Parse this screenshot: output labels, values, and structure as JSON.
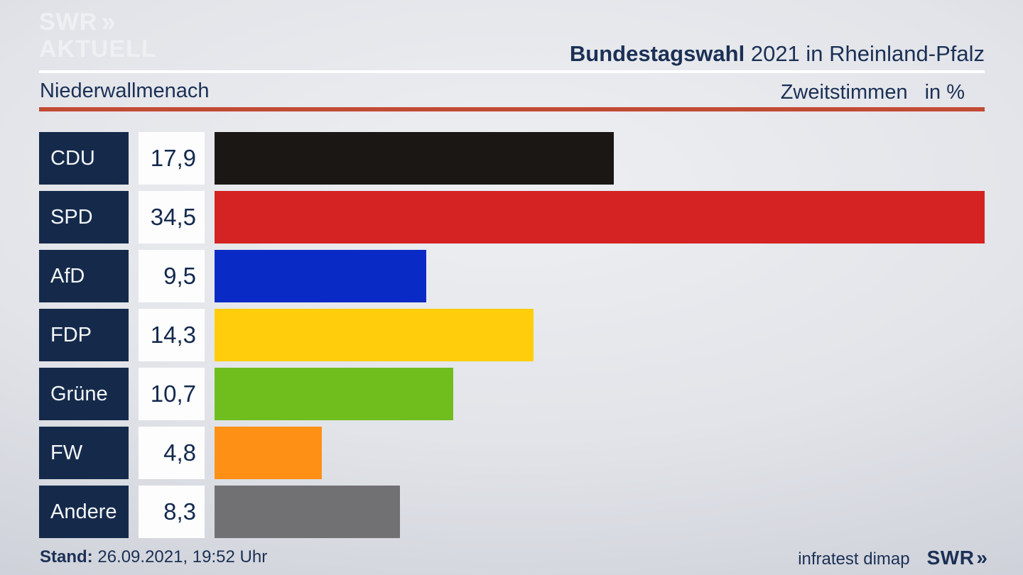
{
  "logo": {
    "line1": "SWR",
    "line2": "AKTUELL",
    "chevron": "»"
  },
  "header": {
    "title_bold": "Bundestagswahl",
    "title_rest": " 2021 in Rheinland-Pfalz",
    "region": "Niederwallmenach",
    "measure": "Zweitstimmen",
    "unit": "in %"
  },
  "colors": {
    "accent_red_line": "#c14b35",
    "label_box": "#152a4b",
    "text_navy": "#1b3055",
    "value_box": "#fdfdfe"
  },
  "chart_data": {
    "type": "bar",
    "orientation": "horizontal",
    "title": "Bundestagswahl 2021 in Rheinland-Pfalz",
    "subtitle": "Niederwallmenach",
    "measure": "Zweitstimmen",
    "unit": "in %",
    "categories": [
      "CDU",
      "SPD",
      "AfD",
      "FDP",
      "Grüne",
      "FW",
      "Andere"
    ],
    "values": [
      17.9,
      34.5,
      9.5,
      14.3,
      10.7,
      4.8,
      8.3
    ],
    "display_values": [
      "17,9",
      "34,5",
      "9,5",
      "14,3",
      "10,7",
      "4,8",
      "8,3"
    ],
    "bar_colors": [
      "#1a1715",
      "#d42322",
      "#0a2ac6",
      "#ffcd0b",
      "#6fbe1d",
      "#fe9015",
      "#717174"
    ],
    "value_scale_max": 34.5,
    "xlim": [
      0,
      34.5
    ],
    "grid": false,
    "legend": false
  },
  "footer": {
    "stand_label": "Stand:",
    "stand_value": " 26.09.2021, 19:52 Uhr",
    "source": "infratest dimap",
    "brand": "SWR",
    "brand_chevron": "»"
  }
}
